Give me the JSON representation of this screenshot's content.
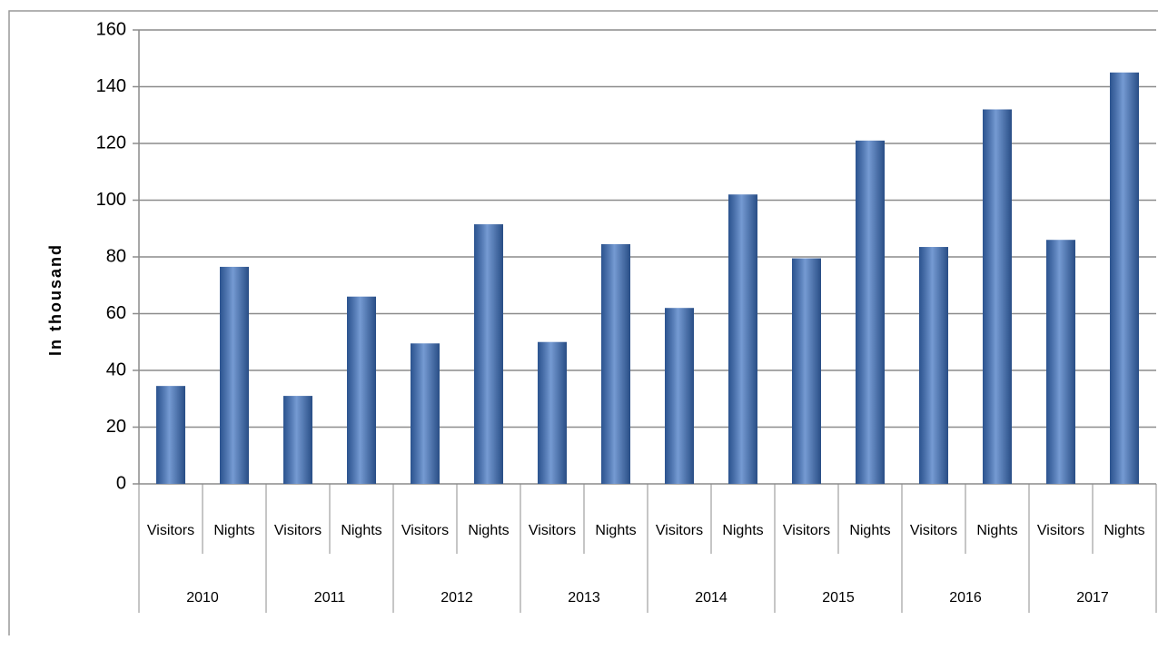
{
  "chart_data": {
    "type": "bar",
    "y_axis_label": "In thousand",
    "categories": [
      "Visitors",
      "Nights",
      "Visitors",
      "Nights",
      "Visitors",
      "Nights",
      "Visitors",
      "Nights",
      "Visitors",
      "Nights",
      "Visitors",
      "Nights",
      "Visitors",
      "Nights",
      "Visitors",
      "Nights"
    ],
    "groups": [
      "2010",
      "2011",
      "2012",
      "2013",
      "2014",
      "2015",
      "2016",
      "2017"
    ],
    "values": [
      34.5,
      76.5,
      31,
      66,
      49.5,
      91.5,
      50,
      84.5,
      62,
      102,
      79.5,
      121,
      83.5,
      132,
      86,
      145
    ],
    "color": "#3a6fbf",
    "ylim": [
      0,
      160
    ],
    "yticks": [
      0,
      20,
      40,
      60,
      80,
      100,
      120,
      140,
      160
    ],
    "grid": true
  }
}
